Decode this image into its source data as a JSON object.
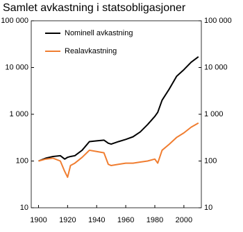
{
  "chart_data": {
    "type": "line",
    "title": "Samlet avkastning i statsobligasjoner",
    "x": [
      1900,
      1905,
      1910,
      1915,
      1918,
      1920,
      1922,
      1925,
      1930,
      1935,
      1940,
      1945,
      1948,
      1950,
      1955,
      1960,
      1965,
      1970,
      1975,
      1980,
      1982,
      1985,
      1990,
      1995,
      2000,
      2005,
      2010
    ],
    "series": [
      {
        "name": "Nominell avkastning",
        "color": "#000000",
        "values": [
          100,
          115,
          125,
          130,
          110,
          120,
          125,
          130,
          170,
          260,
          270,
          280,
          240,
          230,
          260,
          290,
          330,
          420,
          600,
          900,
          1100,
          2000,
          3500,
          6500,
          9000,
          13000,
          17000
        ]
      },
      {
        "name": "Realavkastning",
        "color": "#f07d30",
        "values": [
          100,
          110,
          115,
          100,
          60,
          45,
          80,
          90,
          120,
          170,
          160,
          150,
          85,
          80,
          85,
          90,
          90,
          95,
          100,
          110,
          90,
          170,
          230,
          320,
          400,
          530,
          650
        ]
      }
    ],
    "xlim": [
      1895,
      2012
    ],
    "xticks": [
      1900,
      1920,
      1940,
      1960,
      1980,
      2000
    ],
    "ylim": [
      10,
      100000
    ],
    "yticks": [
      10,
      100,
      {
        "value": 1000,
        "label": "1 000"
      },
      {
        "value": 10000,
        "label": "10 000"
      },
      {
        "value": 100000,
        "label": "100 000"
      }
    ],
    "log_scale": true,
    "legend": "upper left"
  }
}
